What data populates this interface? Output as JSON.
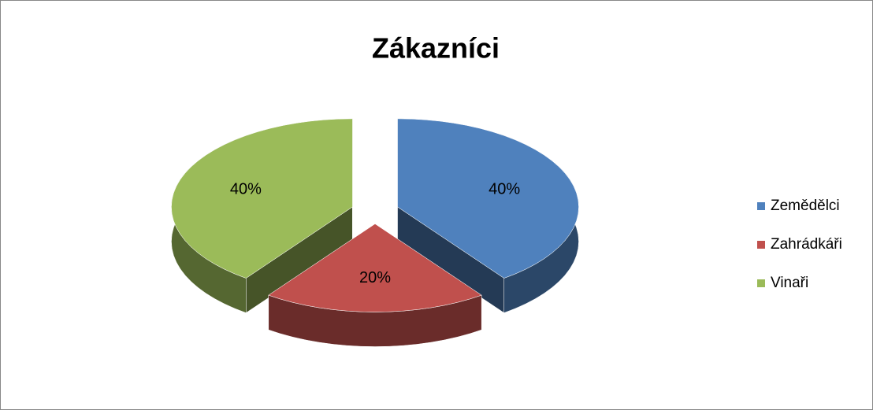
{
  "chart_data": {
    "type": "pie",
    "title": "Zákazníci",
    "categories": [
      "Zemědělci",
      "Zahrádkáři",
      "Vinaři"
    ],
    "values": [
      40,
      20,
      40
    ],
    "value_labels": [
      "40%",
      "20%",
      "40%"
    ],
    "colors": [
      "#4f81bd",
      "#c0504d",
      "#9bbb59"
    ],
    "legend": "right"
  }
}
